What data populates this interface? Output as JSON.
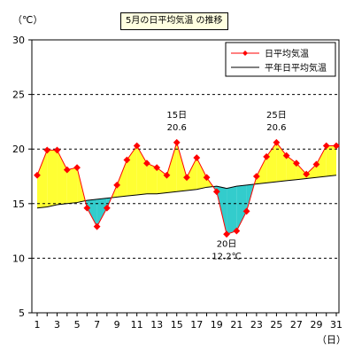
{
  "chart_data": {
    "type": "line",
    "title": "5月の日平均気温 の推移",
    "xlabel": "（日）",
    "ylabel": "（℃）",
    "ylim": [
      5,
      30
    ],
    "yticks": [
      5,
      10,
      15,
      20,
      25,
      30
    ],
    "x": [
      1,
      2,
      3,
      4,
      5,
      6,
      7,
      8,
      9,
      10,
      11,
      12,
      13,
      14,
      15,
      16,
      17,
      18,
      19,
      20,
      21,
      22,
      23,
      24,
      25,
      26,
      27,
      28,
      29,
      30,
      31
    ],
    "xtick_labels": [
      "1",
      "3",
      "5",
      "7",
      "9",
      "11",
      "13",
      "15",
      "17",
      "19",
      "21",
      "23",
      "25",
      "27",
      "29",
      "31"
    ],
    "grid": "horizontal dashed",
    "legend_position": "top-right",
    "series": [
      {
        "name": "日平均気温",
        "color": "#ff0000",
        "marker": "diamond",
        "values": [
          17.6,
          19.9,
          19.9,
          18.1,
          18.3,
          14.6,
          12.9,
          14.6,
          16.7,
          19.0,
          20.3,
          18.7,
          18.3,
          17.6,
          20.6,
          17.4,
          19.2,
          17.4,
          16.1,
          12.2,
          12.5,
          14.3,
          17.5,
          19.3,
          20.6,
          19.4,
          18.7,
          17.7,
          18.6,
          20.3,
          20.3
        ]
      },
      {
        "name": "平年日平均気温",
        "color": "#000000",
        "marker": "none",
        "values": [
          14.6,
          14.7,
          14.9,
          15.0,
          15.1,
          15.3,
          15.4,
          15.5,
          15.6,
          15.7,
          15.8,
          15.9,
          15.9,
          16.0,
          16.1,
          16.2,
          16.3,
          16.5,
          16.6,
          16.4,
          16.6,
          16.7,
          16.8,
          16.9,
          17.0,
          17.1,
          17.2,
          17.3,
          17.4,
          17.5,
          17.6
        ]
      }
    ],
    "fill_colors": {
      "above_normal": "#ffff33",
      "below_normal": "#33cccc"
    },
    "annotations": [
      {
        "day": 15,
        "lines": [
          "15日",
          "20.6"
        ]
      },
      {
        "day": 25,
        "lines": [
          "25日",
          "20.6"
        ]
      },
      {
        "day": 20,
        "lines": [
          "20日",
          "12.2℃"
        ]
      }
    ]
  }
}
